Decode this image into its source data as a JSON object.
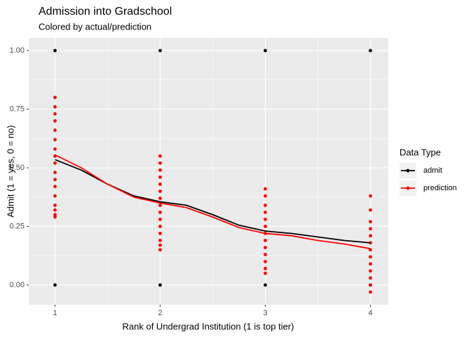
{
  "chart_data": {
    "type": "scatter",
    "title": "Admission into Gradschool",
    "subtitle": "Colored by actual/prediction",
    "x_label": "Rank of Undergrad Institution (1 is top tier)",
    "y_label": "Admit (1 = yes, 0 = no)",
    "legend_title": "Data Type",
    "xlim": [
      0.75,
      4.17
    ],
    "ylim": [
      -0.084,
      1.054
    ],
    "xticks": [
      1,
      2,
      3,
      4
    ],
    "x_minor_ticks": [
      1.5,
      2.5,
      3.5
    ],
    "yticks": [
      {
        "value": 0,
        "label": "0.00"
      },
      {
        "value": 0.25,
        "label": "0.25"
      },
      {
        "value": 0.5,
        "label": "0.50"
      },
      {
        "value": 0.75,
        "label": "0.75"
      },
      {
        "value": 1,
        "label": "1.00"
      }
    ],
    "y_minor_ticks": [
      0.125,
      0.375,
      0.625,
      0.875
    ],
    "grid": true,
    "series": [
      {
        "name": "admit",
        "color": "#000000",
        "x": [
          1,
          1,
          2,
          2,
          3,
          3,
          4,
          4
        ],
        "values": [
          0,
          1,
          0,
          1,
          0,
          1,
          0,
          1
        ],
        "line_x": [
          1,
          1.25,
          1.5,
          1.75,
          2,
          2.25,
          2.5,
          2.75,
          3,
          3.25,
          3.5,
          3.75,
          4
        ],
        "line_values": [
          0.535,
          0.49,
          0.43,
          0.38,
          0.355,
          0.34,
          0.3,
          0.255,
          0.23,
          0.22,
          0.205,
          0.19,
          0.18
        ]
      },
      {
        "name": "prediction",
        "color": "#ff0000",
        "x": [
          1,
          1,
          1,
          1,
          1,
          1,
          1,
          1,
          1,
          1,
          1,
          1,
          1,
          1,
          1,
          1,
          1,
          2,
          2,
          2,
          2,
          2,
          2,
          2,
          2,
          2,
          2,
          2,
          2,
          2,
          2,
          2,
          3,
          3,
          3,
          3,
          3,
          3,
          3,
          3,
          3,
          3,
          3,
          3,
          3,
          4,
          4,
          4,
          4,
          4,
          4,
          4,
          4,
          4,
          4,
          4,
          4,
          4
        ],
        "values": [
          0.29,
          0.3,
          0.32,
          0.34,
          0.38,
          0.42,
          0.45,
          0.48,
          0.52,
          0.55,
          0.58,
          0.62,
          0.66,
          0.7,
          0.73,
          0.76,
          0.8,
          0.15,
          0.17,
          0.19,
          0.22,
          0.25,
          0.28,
          0.31,
          0.34,
          0.37,
          0.4,
          0.43,
          0.46,
          0.49,
          0.52,
          0.55,
          0.05,
          0.07,
          0.1,
          0.13,
          0.16,
          0.19,
          0.22,
          0.25,
          0.28,
          0.31,
          0.34,
          0.38,
          0.41,
          -0.03,
          0,
          0.03,
          0.06,
          0.09,
          0.12,
          0.15,
          0.18,
          0.21,
          0.24,
          0.27,
          0.32,
          0.38
        ],
        "line_x": [
          1,
          1.25,
          1.5,
          1.75,
          2,
          2.25,
          2.5,
          2.75,
          3,
          3.25,
          3.5,
          3.75,
          4
        ],
        "line_values": [
          0.555,
          0.5,
          0.43,
          0.375,
          0.35,
          0.33,
          0.29,
          0.245,
          0.22,
          0.21,
          0.19,
          0.175,
          0.155
        ]
      }
    ]
  }
}
